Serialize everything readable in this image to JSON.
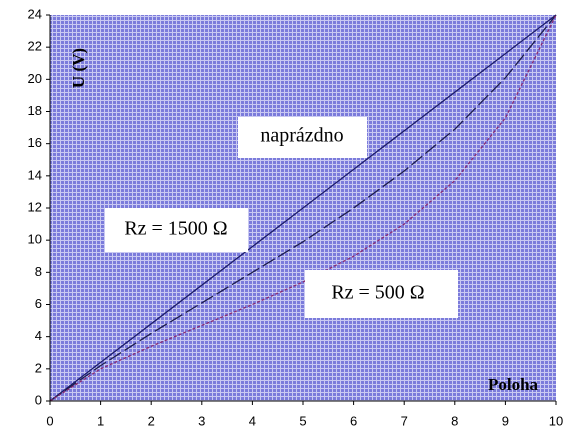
{
  "chart_data": {
    "type": "line",
    "x_label": "Poloha",
    "y_label": "U (V)",
    "x": [
      0,
      1,
      2,
      3,
      4,
      5,
      6,
      7,
      8,
      9,
      10
    ],
    "series": [
      {
        "name": "naprázdno",
        "color": "#1c1c6a",
        "dash": "solid",
        "values": [
          0,
          2.4,
          4.8,
          7.2,
          9.6,
          12,
          14.4,
          16.8,
          19.2,
          21.6,
          24
        ]
      },
      {
        "name": "Rz = 1500 Ω",
        "color": "#1c1c4c",
        "dash": "dashed",
        "values": [
          0,
          2.2,
          4.2,
          6.1,
          8.0,
          9.9,
          12.0,
          14.3,
          16.9,
          20.1,
          24
        ]
      },
      {
        "name": "Rz = 500 Ω",
        "color": "#8a2a70",
        "dash": "dotted",
        "values": [
          0,
          2.0,
          3.4,
          4.7,
          6.0,
          7.4,
          9.0,
          11.0,
          13.7,
          17.6,
          24
        ]
      }
    ],
    "xlim": [
      0,
      10
    ],
    "ylim": [
      0,
      24
    ],
    "xticks": [
      0,
      1,
      2,
      3,
      4,
      5,
      6,
      7,
      8,
      9,
      10
    ],
    "yticks": [
      0,
      2,
      4,
      6,
      8,
      10,
      12,
      14,
      16,
      18,
      20,
      22,
      24
    ]
  }
}
